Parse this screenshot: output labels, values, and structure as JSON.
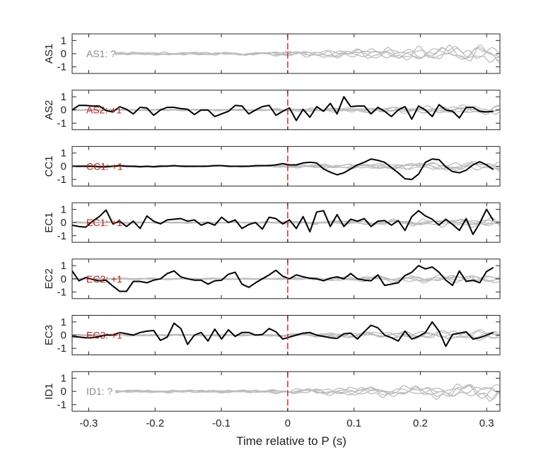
{
  "chart_data": {
    "type": "line",
    "xlabel": "Time relative to P (s)",
    "xlim": [
      -0.325,
      0.32
    ],
    "xticks": [
      -0.3,
      -0.2,
      -0.1,
      0,
      0.1,
      0.2,
      0.3
    ],
    "xtick_labels": [
      "-0.3",
      "-0.2",
      "-0.1",
      "0",
      "0.1",
      "0.2",
      "0.3"
    ],
    "ylim": [
      -1.5,
      1.5
    ],
    "yticks": [
      1,
      0,
      -1
    ],
    "ytick_labels": [
      "1",
      "0",
      "-1"
    ],
    "marker_x": 0,
    "colors": {
      "black": "#000000",
      "gray": "#bdbdbd",
      "red_line": "#e8281f",
      "annot_red": "#b3241f",
      "annot_gray": "#8c8c8c"
    },
    "panels": [
      {
        "ylabel": "AS1",
        "annotation": "AS1: ?",
        "annotation_color": "#8c8c8c",
        "y": []
      },
      {
        "ylabel": "AS2",
        "annotation": "AS2: +1",
        "annotation_color": "#b3241f",
        "y": [
          0.0,
          0.35,
          0.35,
          0.3,
          0.3,
          -0.05,
          -0.15,
          0.25,
          0.05,
          -0.3,
          0.2,
          0.15,
          -0.4,
          0.0,
          0.2,
          0.2,
          0.1,
          0.05,
          -0.35,
          0.0,
          0.0,
          -0.5,
          -0.3,
          -0.1,
          0.35,
          0.3,
          -0.3,
          0.0,
          0.25,
          0.35,
          -0.4,
          -0.1,
          0.15,
          -0.8,
          0.05,
          -0.55,
          0.25,
          -0.1,
          0.5,
          -0.3,
          1.0,
          0.25,
          0.3,
          0.3,
          -0.3,
          0.2,
          -0.1,
          -0.5,
          0.0,
          0.25,
          -0.7,
          0.3,
          0.0,
          -0.5,
          0.4,
          0.0,
          -0.1,
          -0.6,
          0.2,
          0.2,
          -0.1,
          -0.15,
          -0.1
        ]
      },
      {
        "ylabel": "CC1",
        "annotation": "CC1: +1",
        "annotation_color": "#b3241f",
        "y": [
          0.0,
          0.0,
          0.0,
          0.0,
          -0.05,
          -0.05,
          0.0,
          0.05,
          0.0,
          0.0,
          -0.05,
          0.0,
          -0.05,
          0.0,
          0.0,
          0.05,
          0.0,
          0.0,
          0.0,
          0.0,
          0.0,
          0.05,
          0.05,
          0.0,
          0.0,
          0.0,
          0.0,
          0.05,
          0.05,
          0.05,
          0.1,
          0.2,
          0.1,
          0.1,
          0.25,
          0.3,
          0.25,
          -0.2,
          -0.45,
          -0.65,
          -0.5,
          -0.2,
          0.1,
          0.3,
          0.55,
          0.45,
          0.3,
          -0.1,
          -0.5,
          -0.95,
          -1.0,
          -0.6,
          0.3,
          0.55,
          0.5,
          -0.05,
          -0.4,
          -0.5,
          -0.3,
          0.1,
          0.35,
          0.1,
          -0.25
        ]
      },
      {
        "ylabel": "EC1",
        "annotation": "EC1: +1",
        "annotation_color": "#b3241f",
        "y": [
          -0.2,
          -0.3,
          -0.35,
          0.1,
          0.45,
          0.95,
          -0.1,
          0.1,
          -0.3,
          0.1,
          -0.45,
          0.5,
          0.1,
          -0.1,
          0.2,
          0.25,
          0.3,
          0.1,
          0.2,
          -0.2,
          0.0,
          -0.2,
          0.4,
          0.0,
          0.2,
          -0.45,
          -0.15,
          0.0,
          -0.5,
          0.4,
          0.3,
          -0.1,
          0.2,
          -0.45,
          0.45,
          -0.7,
          0.8,
          0.9,
          -0.3,
          0.6,
          -0.3,
          0.25,
          0.1,
          0.3,
          -0.3,
          0.1,
          0.15,
          -0.2,
          0.15,
          -0.6,
          0.45,
          0.9,
          0.5,
          0.25,
          -0.2,
          0.25,
          -0.15,
          -0.6,
          0.3,
          -0.9,
          -0.05,
          1.0,
          0.15
        ]
      },
      {
        "ylabel": "EC2",
        "annotation": "EC2: +1",
        "annotation_color": "#b3241f",
        "y": [
          0.6,
          -0.15,
          0.1,
          -0.05,
          -0.15,
          -0.1,
          -0.55,
          -0.95,
          -0.95,
          -0.2,
          -0.2,
          -0.3,
          -0.1,
          0.0,
          0.4,
          0.6,
          0.15,
          0.0,
          -0.1,
          -0.1,
          -0.4,
          -0.15,
          -0.1,
          0.35,
          0.5,
          -0.4,
          -0.65,
          -0.3,
          0.0,
          0.3,
          0.65,
          0.2,
          0.0,
          0.3,
          0.15,
          0.05,
          0.0,
          -0.15,
          0.05,
          0.15,
          0.0,
          0.4,
          0.0,
          -0.1,
          -0.15,
          0.3,
          -0.5,
          -0.4,
          -0.3,
          0.25,
          0.5,
          1.0,
          0.75,
          0.9,
          0.5,
          -0.1,
          -0.5,
          0.6,
          -0.2,
          -0.1,
          -0.3,
          0.55,
          0.85
        ]
      },
      {
        "ylabel": "EC3",
        "annotation": "EC3: +1",
        "annotation_color": "#b3241f",
        "y": [
          -0.1,
          -0.15,
          -0.2,
          -0.2,
          -0.1,
          0.0,
          0.0,
          0.2,
          0.1,
          0.0,
          0.2,
          0.3,
          0.35,
          -0.4,
          -0.15,
          0.9,
          0.5,
          -0.7,
          0.0,
          0.2,
          -0.45,
          0.45,
          -0.3,
          0.4,
          -0.1,
          0.2,
          0.2,
          0.0,
          0.05,
          0.5,
          0.25,
          -0.3,
          -0.15,
          0.0,
          0.15,
          0.2,
          0.0,
          -0.1,
          -0.2,
          -0.25,
          0.1,
          0.15,
          -0.3,
          0.25,
          0.75,
          0.55,
          0.0,
          -0.2,
          -0.45,
          0.3,
          -0.3,
          -0.1,
          0.2,
          1.0,
          0.3,
          -0.85,
          0.05,
          0.15,
          0.25,
          -0.3,
          -0.2,
          0.0,
          0.2
        ]
      },
      {
        "ylabel": "ID1",
        "annotation": "ID1: ?",
        "annotation_color": "#8c8c8c",
        "y": []
      }
    ]
  }
}
